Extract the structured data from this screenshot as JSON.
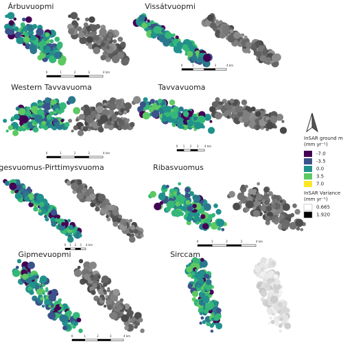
{
  "panels": [
    {
      "title": "Árbuvuopmi",
      "scale": [
        "0",
        "1",
        "2",
        "3",
        "4 km"
      ]
    },
    {
      "title": "Vissátvuopmi",
      "scale": [
        "0",
        "1",
        "2",
        "3",
        "4 km"
      ]
    },
    {
      "title": "Western Tavvavuoma",
      "scale": [
        "0",
        "1",
        "2",
        "3",
        "4 km"
      ]
    },
    {
      "title": "Tavvavuoma",
      "scale": [
        "0",
        "1",
        "2",
        "3",
        "4 km"
      ]
    },
    {
      "title": "Ragesvuomus-Pirttimysvuoma",
      "scale": [
        "0",
        "1",
        "2",
        "3",
        "4 km"
      ]
    },
    {
      "title": "Ribasvuomus",
      "scale": [
        "0",
        "1",
        "2",
        "3",
        "4 km"
      ]
    },
    {
      "title": "Gipmevuopmi",
      "scale": [
        "0",
        "1",
        "2",
        "3",
        "4 km"
      ]
    },
    {
      "title": "Sirccam",
      "scale": []
    }
  ],
  "legend": {
    "motion_title": "InSAR ground motion",
    "motion_unit": "(mm  yr⁻¹)",
    "motion": [
      {
        "label": "-7.0",
        "color": "#440154"
      },
      {
        "label": "-3.5",
        "color": "#3b528b"
      },
      {
        "label": "0.0",
        "color": "#21918c"
      },
      {
        "label": "3.5",
        "color": "#5ec962"
      },
      {
        "label": "7.0",
        "color": "#fde725"
      }
    ],
    "variance_title": "InSAR Variance",
    "variance_unit": "(mm  yr⁻¹)",
    "variance": [
      {
        "label": "0.665",
        "color": "#ffffff"
      },
      {
        "label": "1.920",
        "color": "#000000"
      }
    ]
  }
}
